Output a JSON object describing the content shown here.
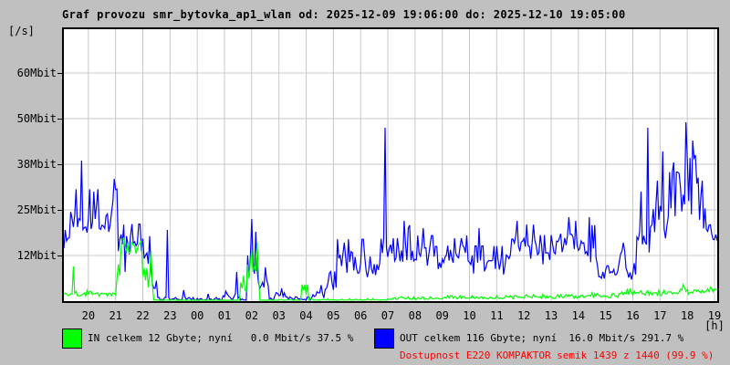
{
  "page": {
    "background_color": "#c0c0c0",
    "plot_background_color": "#ffffff",
    "grid_color": "#c8c8c8"
  },
  "chart_data": {
    "type": "line",
    "title": "Graf provozu smr_bytovka_ap1_wlan od: 2025-12-09 19:06:00 do: 2025-12-10 19:05:00",
    "ylabel": "[/s]",
    "x_unit_label": "[h]",
    "x_start_clock": "19:06",
    "x_end_clock": "19:05",
    "x_range_hours": 24,
    "first_tick_offset_h": 0.9,
    "x_tick_labels": [
      "20",
      "21",
      "22",
      "23",
      "00",
      "01",
      "02",
      "03",
      "04",
      "05",
      "06",
      "07",
      "08",
      "09",
      "10",
      "11",
      "12",
      "13",
      "14",
      "15",
      "16",
      "17",
      "18",
      "19"
    ],
    "y_tick_labels": [
      "60Mbit",
      "50Mbit",
      "38Mbit",
      "25Mbit",
      "12Mbit"
    ],
    "y_tick_values_mbit": [
      62.5,
      50,
      37.5,
      25,
      12.5
    ],
    "ylim_mbit": [
      0,
      74.5
    ],
    "grid": true,
    "legend_position": "bottom",
    "sample_step_h": 0.05,
    "series": [
      {
        "name": "OUT",
        "unit": "Mbit/s",
        "color": "#0000ff",
        "segments": [
          [
            0.0,
            0.25,
            17,
            4
          ],
          [
            0.25,
            1.75,
            23,
            4.5
          ],
          [
            1.75,
            2.0,
            27,
            5
          ],
          [
            2.0,
            2.45,
            15,
            3.5
          ],
          [
            2.45,
            2.95,
            16,
            3
          ],
          [
            2.95,
            3.25,
            11,
            4
          ],
          [
            3.25,
            3.45,
            4,
            2
          ],
          [
            3.45,
            5.85,
            0.4,
            0.35
          ],
          [
            5.85,
            6.45,
            1.2,
            0.9
          ],
          [
            6.45,
            6.75,
            0.5,
            0.4
          ],
          [
            6.75,
            7.15,
            11,
            5
          ],
          [
            7.15,
            7.55,
            5,
            2.5
          ],
          [
            7.55,
            8.15,
            1.5,
            1.2
          ],
          [
            8.15,
            9.15,
            0.5,
            0.4
          ],
          [
            9.15,
            9.65,
            2,
            1.4
          ],
          [
            9.65,
            10.05,
            6,
            3
          ],
          [
            10.05,
            11.05,
            11,
            3.5
          ],
          [
            11.05,
            11.65,
            8,
            2.5
          ],
          [
            11.65,
            11.9,
            12,
            3
          ],
          [
            11.9,
            12.45,
            13,
            2.5
          ],
          [
            12.45,
            12.85,
            14,
            4
          ],
          [
            12.85,
            13.95,
            12,
            3.5
          ],
          [
            13.95,
            14.95,
            13,
            2.5
          ],
          [
            14.95,
            16.4,
            10,
            3
          ],
          [
            16.4,
            17.5,
            15,
            3.5
          ],
          [
            17.5,
            18.0,
            13,
            3
          ],
          [
            18.0,
            19.1,
            15,
            3.5
          ],
          [
            19.1,
            19.6,
            14,
            4
          ],
          [
            19.6,
            20.4,
            8,
            2
          ],
          [
            20.4,
            20.7,
            11,
            3
          ],
          [
            20.7,
            21.05,
            7,
            2
          ],
          [
            21.05,
            21.65,
            17,
            5
          ],
          [
            21.65,
            22.25,
            22,
            5
          ],
          [
            22.25,
            22.8,
            26,
            5.5
          ],
          [
            22.8,
            23.35,
            29,
            6
          ],
          [
            23.35,
            23.75,
            22,
            4
          ],
          [
            23.75,
            24.01,
            19,
            2.5
          ]
        ],
        "spikes": [
          [
            0.65,
            38.5
          ],
          [
            1.1,
            30
          ],
          [
            1.85,
            33.5
          ],
          [
            2.25,
            8
          ],
          [
            3.78,
            19.5
          ],
          [
            4.4,
            3
          ],
          [
            5.3,
            2
          ],
          [
            6.35,
            8
          ],
          [
            6.92,
            22.5
          ],
          [
            7.05,
            19
          ],
          [
            8.0,
            3.5
          ],
          [
            10.3,
            16
          ],
          [
            11.78,
            47.5
          ],
          [
            12.5,
            22
          ],
          [
            12.65,
            20
          ],
          [
            13.2,
            20
          ],
          [
            14.8,
            18
          ],
          [
            15.25,
            20
          ],
          [
            16.65,
            22
          ],
          [
            17.0,
            21
          ],
          [
            18.55,
            23
          ],
          [
            18.8,
            22
          ],
          [
            19.3,
            23
          ],
          [
            20.55,
            16
          ],
          [
            21.2,
            30
          ],
          [
            21.43,
            47.5
          ],
          [
            21.8,
            33
          ],
          [
            22.0,
            41
          ],
          [
            22.4,
            38
          ],
          [
            22.6,
            35
          ],
          [
            22.87,
            49
          ],
          [
            23.1,
            44
          ],
          [
            23.2,
            40
          ],
          [
            23.45,
            33
          ]
        ]
      },
      {
        "name": "IN",
        "unit": "Mbit/s",
        "color": "#00ff00",
        "segments": [
          [
            0.0,
            1.95,
            1.8,
            0.5
          ],
          [
            1.95,
            2.1,
            9,
            3
          ],
          [
            2.1,
            2.9,
            14.5,
            1.6
          ],
          [
            2.9,
            3.3,
            7,
            4
          ],
          [
            3.3,
            6.5,
            0.15,
            0.12
          ],
          [
            6.5,
            6.75,
            3.5,
            2
          ],
          [
            6.75,
            7.2,
            9,
            4
          ],
          [
            7.2,
            8.75,
            0.2,
            0.15
          ],
          [
            8.75,
            9.0,
            2,
            1.5
          ],
          [
            9.0,
            11.9,
            0.3,
            0.2
          ],
          [
            11.9,
            14.0,
            0.7,
            0.3
          ],
          [
            14.0,
            17.0,
            0.9,
            0.35
          ],
          [
            17.0,
            19.0,
            1.1,
            0.4
          ],
          [
            19.0,
            20.5,
            1.3,
            0.45
          ],
          [
            20.5,
            21.5,
            2.2,
            0.7
          ],
          [
            21.5,
            22.6,
            2.0,
            0.6
          ],
          [
            22.6,
            22.95,
            3.0,
            0.8
          ],
          [
            22.95,
            23.6,
            2.2,
            0.5
          ],
          [
            23.6,
            24.01,
            2.8,
            0.6
          ]
        ],
        "spikes": [
          [
            0.35,
            9.5
          ],
          [
            0.85,
            3
          ],
          [
            2.15,
            17
          ],
          [
            2.5,
            16
          ],
          [
            2.85,
            16.5
          ],
          [
            6.6,
            7
          ],
          [
            6.9,
            14
          ],
          [
            7.1,
            16
          ],
          [
            8.87,
            4.5
          ],
          [
            17.6,
            1.9
          ],
          [
            19.4,
            2.3
          ],
          [
            20.8,
            3.2
          ],
          [
            22.75,
            4.5
          ],
          [
            23.95,
            3.2
          ]
        ]
      }
    ]
  },
  "legend": {
    "in": {
      "swatch_color": "#00ff00",
      "label": "IN celkem 12 Gbyte; nyní   0.0 Mbit/s 37.5 %"
    },
    "out": {
      "swatch_color": "#0000ff",
      "label": "OUT celkem 116 Gbyte; nyní  16.0 Mbit/s 291.7 %"
    },
    "availability": {
      "text": "Dostupnost E220 KOMPAKTOR semik 1439 z 1440 (99.9 %)",
      "color": "#ff0000"
    }
  }
}
